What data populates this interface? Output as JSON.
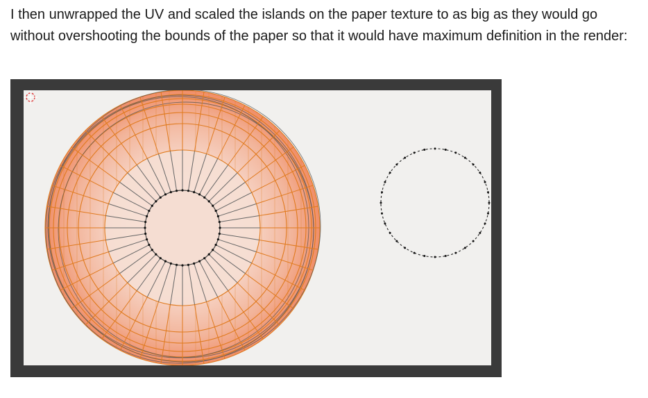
{
  "document": {
    "paragraph": "I then unwrapped the UV and scaled the islands on the paper texture to as big as they would go without overshooting the bounds of the paper so that it would have maximum definition in the render:"
  },
  "uv_editor": {
    "icons": [
      "2d-cursor-icon"
    ],
    "colors": {
      "frame": "#3a3a3a",
      "paper": "#f1f0ee",
      "face_fill_inner": "#f6d8cc",
      "face_fill_outer": "#f2a98c",
      "edge_selected": "#e07a1e",
      "edge_unselected": "#555555",
      "vertex": "#111111"
    }
  }
}
